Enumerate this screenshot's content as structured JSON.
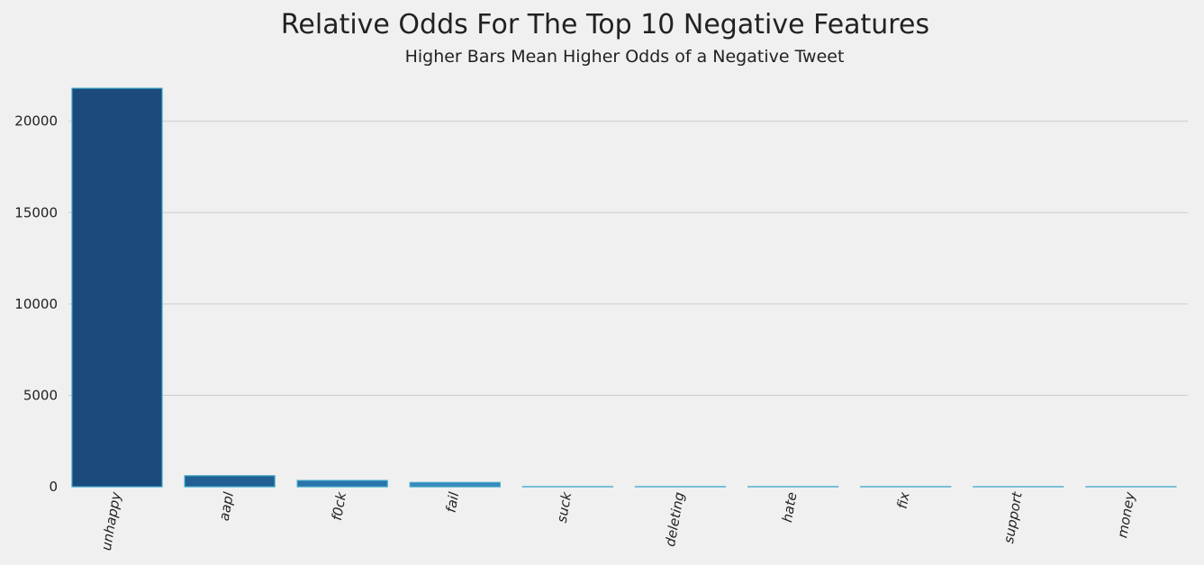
{
  "chart_data": {
    "type": "bar",
    "title": "Relative Odds For The Top 10 Negative Features",
    "subtitle": "Higher Bars Mean Higher Odds of a Negative Tweet",
    "xlabel": "",
    "ylabel": "",
    "categories": [
      "unhappy",
      "aapl",
      "f0ck",
      "fail",
      "suck",
      "deleting",
      "hate",
      "fix",
      "support",
      "money"
    ],
    "values": [
      21800,
      600,
      340,
      230,
      5,
      5,
      4,
      4,
      3,
      3
    ],
    "ylim": [
      0,
      22300
    ],
    "yticks": [
      0,
      5000,
      10000,
      15000,
      20000
    ],
    "grid": true,
    "legend": "none",
    "colors": [
      "#1b4a7d",
      "#225f94",
      "#2b74ab",
      "#3a88be",
      "#4c9bcb",
      "#5eaad3",
      "#72b7da",
      "#88c4e0",
      "#9fcfe6",
      "#b6daec"
    ],
    "bar_edge_color": "#39a5c6",
    "grid_color": "#cbcbcb",
    "background": "#f0f0f0"
  }
}
